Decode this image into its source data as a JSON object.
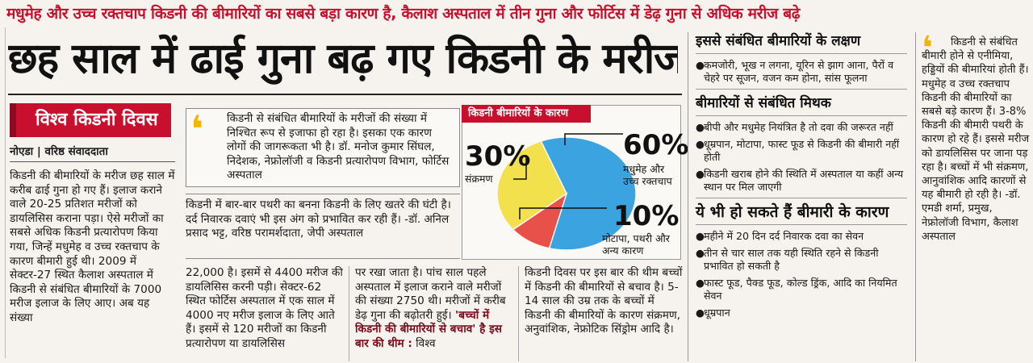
{
  "kicker": "मधुमेह और उच्च रक्तचाप किडनी की बीमारियों का सबसे बड़ा कारण है, कैलाश अस्पताल में तीन गुना और फोर्टिस में डेढ़ गुना से अधिक मरीज बढ़े",
  "headline": "छह साल में ढाई गुना बढ़ गए किडनी के मरीज",
  "section_tag": "विश्व किडनी दिवस",
  "dateline": "नोएडा | वरिष्ठ संवाददाता",
  "col1": "किडनी की बीमारियों के मरीज छह साल में करीब ढाई गुना हो गए हैं। इलाज कराने वाले 20-25 प्रतिशत मरीजों को डायलिसिस कराना पड़ा। ऐसे मरीजों का सबसे अधिक किडनी प्रत्यारोपण किया गया, जिन्हें मधुमेह व उच्च रक्तचाप के कारण बीमारी हुई थी। 2009 में सेक्टर-27 स्थित कैलाश अस्पताल में किडनी से संबंधित बीमारियों के 7000 मरीज इलाज के लिए आए। अब यह संख्या",
  "quote1": "किडनी से संबंधित बीमारियों के मरीजों की संख्या में निश्चित रूप से इजाफा हो रहा है। इसका एक कारण लोगों की जागरूकता भी है। डॉ. मनोज कुमार सिंघल, निदेशक, नेफ्रोलॉजी व किडनी प्रत्यारोपण विभाग, फोर्टिस अस्पताल",
  "quote2": "किडनी में बार-बार पथरी का बनना किडनी के लिए खतरे की घंटी है। दर्द निवारक दवाएं भी इस अंग को प्रभावित कर रही हैं। -डॉ. अनिल प्रसाद भट्ट, वरिष्ठ परामर्शदाता, जेपी अस्पताल",
  "chart_data": {
    "type": "pie",
    "title": "किडनी बीमारियों के कारण",
    "slices": [
      {
        "label": "मधुमेह और उच्च रक्तचाप",
        "value": 60,
        "display": "60%",
        "color": "#3aa3e0"
      },
      {
        "label": "संक्रमण",
        "value": 30,
        "display": "30%",
        "color": "#f2e14c"
      },
      {
        "label": "मोटापा, पथरी और अन्य कारण",
        "value": 10,
        "display": "10%",
        "color": "#e8504a"
      }
    ]
  },
  "col2": "22,000 है। इसमें से 4400 मरीज की डायलिसिस करनी पड़ी। सेक्टर-62 स्थित फोर्टिस अस्पताल में एक साल में 4000 नए मरीज इलाज के लिए आते हैं। इसमें से 120 मरीजों का किडनी प्रत्यारोपण या डायलिसिस",
  "col3_text": "पर रखा जाता है। पांच साल पहले अस्पताल में इलाज कराने वाले मरीजों की संख्या 2750 थी। मरीजों में करीब डेढ़ गुना की बढ़ोतरी हुई।",
  "col3_theme": "'बच्चों में किडनी की बीमारियों से बचाव' है इस बार की थीम :",
  "col3_tail": "विश्व",
  "col4": "किडनी दिवस पर इस बार की थीम बच्चों में किडनी की बीमारियों से बचाव है। 5-14 साल की उम्र तक के बच्चों में किडनी की बीमारियों के कारण संक्रमण, अनुवांशिक, नेफ्रोटिक सिंड्रोम आदि है।",
  "sidebar": {
    "symptoms_heading": "इससे संबंधित बीमारियों के लक्षण",
    "symptoms": [
      "कमजोरी, भूख न लगना, यूरिन से झाग आना, पैरों व चेहरे पर सूजन, वजन कम होना, सांस फूलना"
    ],
    "myths_heading": "बीमारियों से संबंधित मिथक",
    "myths": [
      "बीपी और मधुमेह नियंत्रित है तो दवा की जरूरत नहीं",
      "धूम्रपान, मोटापा, फास्ट फूड से किडनी की बीमारी नहीं होती",
      "किडनी खराब होने की स्थिति में अस्पताल या कहीं अन्य स्थान पर मिल जाएगी"
    ],
    "causes_heading": "ये भी हो सकते हैं बीमारी के कारण",
    "causes": [
      "महीने में 20 दिन दर्द निवारक दवा का सेवन",
      "तीन से चार साल तक यही स्थिति रहने से किडनी प्रभावित हो सकती है",
      "फास्ट फूड, पैक्ड फूड, कोल्ड ड्रिंक, आदि का नियमित सेवन",
      "धूम्रपान"
    ]
  },
  "quote3": "किडनी से संबंधित बीमारी होने से एनीमिया, हड्डियों की बीमारियां होती हैं। मधुमेह व उच्च रक्तचाप किडनी की बीमारियों का सबसे बड़े कारण हैं। 3-8% किडनी की बीमारी पथरी के कारण हो रहे हैं। इससे मरीज को डायलिसिस पर जाना पड़ रहा है। बच्चों में भी संक्रमण, आनुवांशिक आदि कारणों से यह बीमारी हो रही है। -डॉ. एमडी शर्मा, प्रमुख, नेफ्रोलॉजी विभाग, कैलाश अस्पताल",
  "colors": {
    "accent": "#c8102e",
    "quote_mark": "#f5b400"
  }
}
